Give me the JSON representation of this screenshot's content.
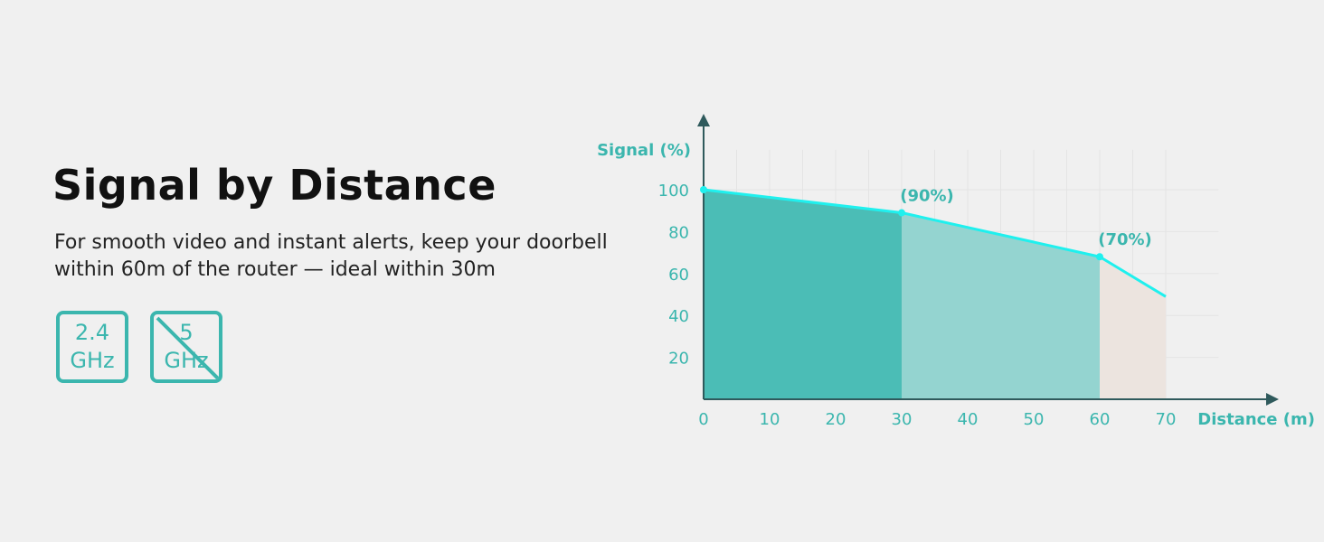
{
  "heading": {
    "title": "Signal by Distance",
    "description": "For smooth video and instant alerts, keep your doorbell within 60m of the router — ideal within 30m"
  },
  "badges": [
    {
      "band": "2.4",
      "unit": "GHz",
      "supported": true
    },
    {
      "band": "5",
      "unit": "GHz",
      "supported": false
    }
  ],
  "colors": {
    "accent": "#3bb6ae",
    "line": "#1ff0ee",
    "zone_ideal": "#4bbdb6",
    "zone_good": "#94d4d0",
    "zone_weak": "#ece4df",
    "axis": "#2f5a5c",
    "title": "#111111"
  },
  "chart_data": {
    "type": "area",
    "ylabel": "Signal (%)",
    "xlabel": "Distance (m)",
    "xlim": [
      0,
      75
    ],
    "ylim": [
      0,
      120
    ],
    "x_ticks": [
      0,
      10,
      20,
      30,
      40,
      50,
      60,
      70
    ],
    "y_ticks": [
      20,
      40,
      60,
      80,
      100
    ],
    "grid": true,
    "series": [
      {
        "x": [
          0,
          30,
          60,
          70
        ],
        "y": [
          100,
          89,
          68,
          49
        ]
      }
    ],
    "zones": [
      {
        "from": 0,
        "to": 30
      },
      {
        "from": 30,
        "to": 60
      },
      {
        "from": 60,
        "to": 70
      }
    ],
    "annotations": [
      {
        "x": 30,
        "y": 89,
        "text": "(90%)"
      },
      {
        "x": 60,
        "y": 68,
        "text": "(70%)"
      }
    ]
  }
}
